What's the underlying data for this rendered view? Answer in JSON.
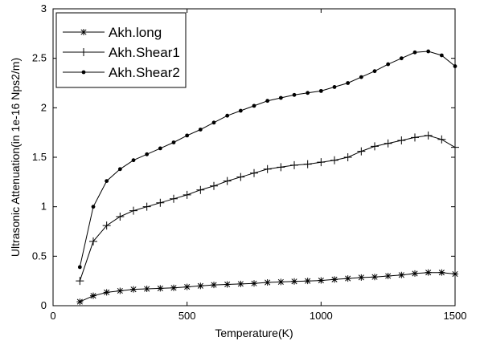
{
  "chart_data": {
    "type": "line",
    "title": "",
    "xlabel": "Temperature(K)",
    "ylabel": "Ultrasonic Attenuation(in 1e-16 Nps2/m)",
    "xlim": [
      0,
      1500
    ],
    "ylim": [
      0,
      3
    ],
    "xticks": [
      0,
      500,
      1000,
      1500
    ],
    "yticks": [
      0,
      0.5,
      1,
      1.5,
      2,
      2.5,
      3
    ],
    "xtick_labels": [
      "0",
      "500",
      "1000",
      "1500"
    ],
    "ytick_labels": [
      "0",
      "0.5",
      "1",
      "1.5",
      "2",
      "2.5",
      "3"
    ],
    "grid": false,
    "legend_position": "top-left",
    "x": [
      100,
      150,
      200,
      250,
      300,
      350,
      400,
      450,
      500,
      550,
      600,
      650,
      700,
      750,
      800,
      850,
      900,
      950,
      1000,
      1050,
      1100,
      1150,
      1200,
      1250,
      1300,
      1350,
      1400,
      1450,
      1500
    ],
    "series": [
      {
        "name": "Akh.long",
        "marker": "asterisk",
        "values": [
          0.04,
          0.1,
          0.135,
          0.15,
          0.165,
          0.17,
          0.175,
          0.18,
          0.19,
          0.2,
          0.21,
          0.215,
          0.22,
          0.225,
          0.235,
          0.24,
          0.245,
          0.25,
          0.255,
          0.265,
          0.275,
          0.285,
          0.29,
          0.3,
          0.31,
          0.325,
          0.335,
          0.335,
          0.32
        ]
      },
      {
        "name": "Akh.Shear1",
        "marker": "plus",
        "values": [
          0.25,
          0.65,
          0.81,
          0.9,
          0.96,
          1.0,
          1.04,
          1.08,
          1.12,
          1.17,
          1.21,
          1.26,
          1.3,
          1.34,
          1.38,
          1.4,
          1.42,
          1.43,
          1.45,
          1.47,
          1.5,
          1.56,
          1.61,
          1.64,
          1.67,
          1.7,
          1.72,
          1.68,
          1.6
        ]
      },
      {
        "name": "Akh.Shear2",
        "marker": "dot",
        "values": [
          0.39,
          1.0,
          1.26,
          1.38,
          1.47,
          1.53,
          1.59,
          1.65,
          1.72,
          1.78,
          1.85,
          1.92,
          1.97,
          2.02,
          2.07,
          2.1,
          2.13,
          2.15,
          2.17,
          2.21,
          2.25,
          2.31,
          2.37,
          2.44,
          2.5,
          2.56,
          2.57,
          2.53,
          2.42
        ]
      }
    ]
  }
}
